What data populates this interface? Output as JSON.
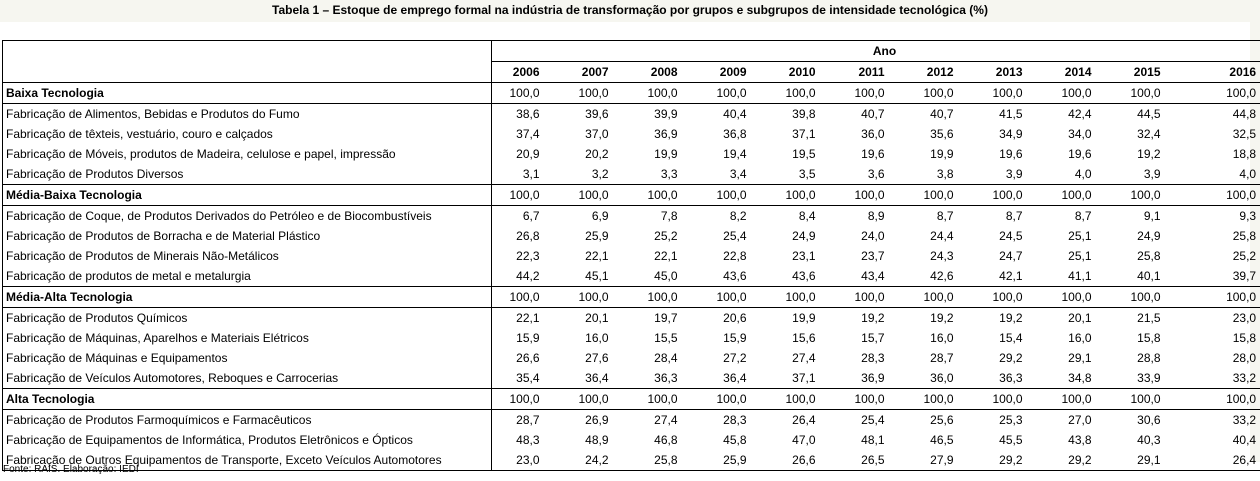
{
  "title": "Tabela 1 – Estoque de emprego formal na indústria de transformação por grupos e subgrupos de intensidade tecnológica (%)",
  "header": {
    "ano_label": "Ano",
    "years": [
      "2006",
      "2007",
      "2008",
      "2009",
      "2010",
      "2011",
      "2012",
      "2013",
      "2014",
      "2015",
      "2016"
    ]
  },
  "groups": [
    {
      "name": "Baixa Tecnologia",
      "values": [
        "100,0",
        "100,0",
        "100,0",
        "100,0",
        "100,0",
        "100,0",
        "100,0",
        "100,0",
        "100,0",
        "100,0",
        "100,0"
      ],
      "rows": [
        {
          "label": "Fabricação de Alimentos, Bebidas e Produtos do Fumo",
          "values": [
            "38,6",
            "39,6",
            "39,9",
            "40,4",
            "39,8",
            "40,7",
            "40,7",
            "41,5",
            "42,4",
            "44,5",
            "44,8"
          ]
        },
        {
          "label": "Fabricação de têxteis, vestuário, couro e calçados",
          "values": [
            "37,4",
            "37,0",
            "36,9",
            "36,8",
            "37,1",
            "36,0",
            "35,6",
            "34,9",
            "34,0",
            "32,4",
            "32,5"
          ]
        },
        {
          "label": "Fabricação de Móveis, produtos de Madeira, celulose e papel, impressão",
          "values": [
            "20,9",
            "20,2",
            "19,9",
            "19,4",
            "19,5",
            "19,6",
            "19,9",
            "19,6",
            "19,6",
            "19,2",
            "18,8"
          ]
        },
        {
          "label": "Fabricação de Produtos Diversos",
          "values": [
            "3,1",
            "3,2",
            "3,3",
            "3,4",
            "3,5",
            "3,6",
            "3,8",
            "3,9",
            "4,0",
            "3,9",
            "4,0"
          ]
        }
      ]
    },
    {
      "name": "Média-Baixa Tecnologia",
      "values": [
        "100,0",
        "100,0",
        "100,0",
        "100,0",
        "100,0",
        "100,0",
        "100,0",
        "100,0",
        "100,0",
        "100,0",
        "100,0"
      ],
      "rows": [
        {
          "label": "Fabricação de Coque, de Produtos Derivados do Petróleo e de Biocombustíveis",
          "values": [
            "6,7",
            "6,9",
            "7,8",
            "8,2",
            "8,4",
            "8,9",
            "8,7",
            "8,7",
            "8,7",
            "9,1",
            "9,3"
          ]
        },
        {
          "label": "Fabricação de Produtos de Borracha e de Material Plástico",
          "values": [
            "26,8",
            "25,9",
            "25,2",
            "25,4",
            "24,9",
            "24,0",
            "24,4",
            "24,5",
            "25,1",
            "24,9",
            "25,8"
          ]
        },
        {
          "label": "Fabricação de Produtos de Minerais Não-Metálicos",
          "values": [
            "22,3",
            "22,1",
            "22,1",
            "22,8",
            "23,1",
            "23,7",
            "24,3",
            "24,7",
            "25,1",
            "25,8",
            "25,2"
          ]
        },
        {
          "label": "Fabricação de produtos de metal e metalurgia",
          "values": [
            "44,2",
            "45,1",
            "45,0",
            "43,6",
            "43,6",
            "43,4",
            "42,6",
            "42,1",
            "41,1",
            "40,1",
            "39,7"
          ]
        }
      ]
    },
    {
      "name": "Média-Alta Tecnologia",
      "values": [
        "100,0",
        "100,0",
        "100,0",
        "100,0",
        "100,0",
        "100,0",
        "100,0",
        "100,0",
        "100,0",
        "100,0",
        "100,0"
      ],
      "rows": [
        {
          "label": "Fabricação de Produtos Químicos",
          "values": [
            "22,1",
            "20,1",
            "19,7",
            "20,6",
            "19,9",
            "19,2",
            "19,2",
            "19,2",
            "20,1",
            "21,5",
            "23,0"
          ]
        },
        {
          "label": "Fabricação de Máquinas, Aparelhos e Materiais Elétricos",
          "values": [
            "15,9",
            "16,0",
            "15,5",
            "15,9",
            "15,6",
            "15,7",
            "16,0",
            "15,4",
            "16,0",
            "15,8",
            "15,8"
          ]
        },
        {
          "label": "Fabricação de Máquinas e Equipamentos",
          "values": [
            "26,6",
            "27,6",
            "28,4",
            "27,2",
            "27,4",
            "28,3",
            "28,7",
            "29,2",
            "29,1",
            "28,8",
            "28,0"
          ]
        },
        {
          "label": "Fabricação de Veículos Automotores, Reboques e Carrocerias",
          "values": [
            "35,4",
            "36,4",
            "36,3",
            "36,4",
            "37,1",
            "36,9",
            "36,0",
            "36,3",
            "34,8",
            "33,9",
            "33,2"
          ]
        }
      ]
    },
    {
      "name": "Alta Tecnologia",
      "values": [
        "100,0",
        "100,0",
        "100,0",
        "100,0",
        "100,0",
        "100,0",
        "100,0",
        "100,0",
        "100,0",
        "100,0",
        "100,0"
      ],
      "rows": [
        {
          "label": "Fabricação de Produtos Farmoquímicos e Farmacêuticos",
          "values": [
            "28,7",
            "26,9",
            "27,4",
            "28,3",
            "26,4",
            "25,4",
            "25,6",
            "25,3",
            "27,0",
            "30,6",
            "33,2"
          ]
        },
        {
          "label": "Fabricação de Equipamentos de Informática, Produtos Eletrônicos e Ópticos",
          "values": [
            "48,3",
            "48,9",
            "46,8",
            "45,8",
            "47,0",
            "48,1",
            "46,5",
            "45,5",
            "43,8",
            "40,3",
            "40,4"
          ]
        },
        {
          "label": "Fabricação de Outros Equipamentos de Transporte, Exceto Veículos Automotores",
          "values": [
            "23,0",
            "24,2",
            "25,8",
            "25,9",
            "26,6",
            "26,5",
            "27,9",
            "29,2",
            "29,2",
            "29,1",
            "26,4"
          ]
        }
      ]
    }
  ],
  "source": "Fonte: RAIS. Elaboração: IEDI"
}
